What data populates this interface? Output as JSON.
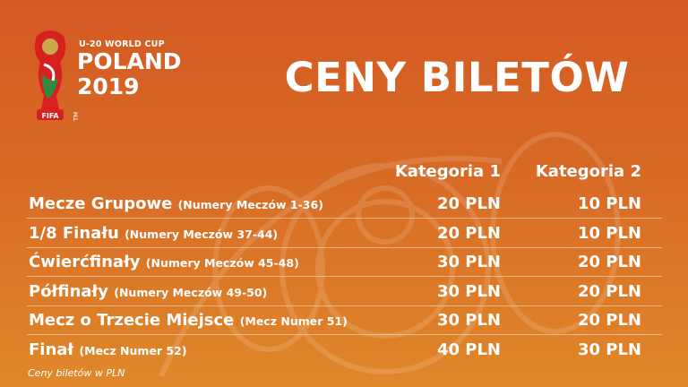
{
  "logo": {
    "line1": "U-20 WORLD CUP",
    "line2": "POLAND",
    "line3": "2019",
    "badge": "FIFA",
    "tm": "TM"
  },
  "title": "CENY BILETÓW",
  "headers": [
    "Kategoria 1",
    "Kategoria 2"
  ],
  "rows": [
    {
      "name": "Mecze Grupowe",
      "sub": "(Numery Meczów 1-36)",
      "cat1": "20 PLN",
      "cat2": "10 PLN"
    },
    {
      "name": "1/8 Finału",
      "sub": "(Numery Meczów 37-44)",
      "cat1": "20 PLN",
      "cat2": "10 PLN"
    },
    {
      "name": "Ćwierćfinały",
      "sub": "(Numery Meczów 45-48)",
      "cat1": "30 PLN",
      "cat2": "20 PLN"
    },
    {
      "name": "Półfinały",
      "sub": "(Numery Meczów 49-50)",
      "cat1": "30 PLN",
      "cat2": "20 PLN"
    },
    {
      "name": "Mecz o Trzecie Miejsce",
      "sub": "(Mecz Numer 51)",
      "cat1": "30 PLN",
      "cat2": "20 PLN"
    },
    {
      "name": "Finał",
      "sub": "(Mecz Numer 52)",
      "cat1": "40 PLN",
      "cat2": "30 PLN"
    }
  ],
  "note": "Ceny biletów w PLN",
  "colors": {
    "bg_top": "#d45a24",
    "bg_bottom": "#e0882a"
  }
}
